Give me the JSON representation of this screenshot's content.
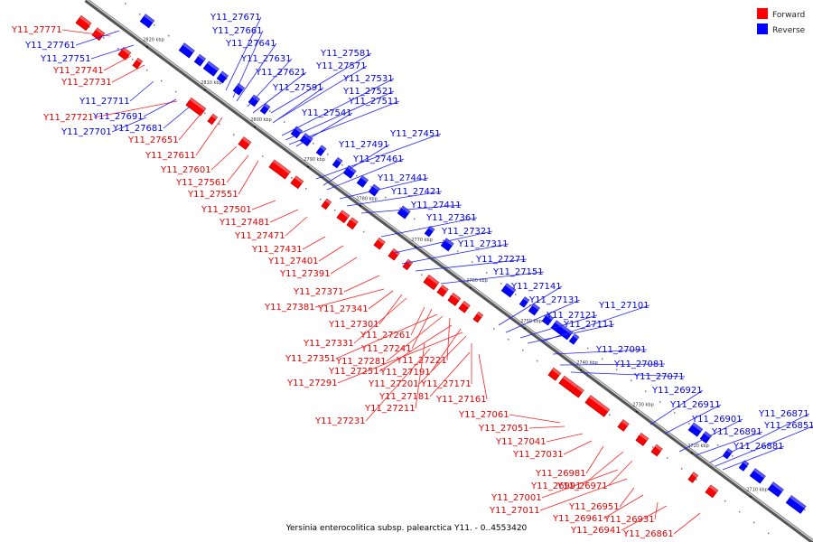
{
  "legend": {
    "forward": {
      "label": "Forward",
      "color": "#ff0000"
    },
    "reverse": {
      "label": "Reverse",
      "color": "#0000ff"
    }
  },
  "caption": "Yersinia enterocolitica subsp. palearctica Y11. - 0..4553420",
  "ticks": [
    "2820 kbp",
    "2810 kbp",
    "2800 kbp",
    "2790 kbp",
    "2780 kbp",
    "2770 kbp",
    "2760 kbp",
    "2750 kbp",
    "2740 kbp",
    "2730 kbp",
    "2720 kbp",
    "2710 kbp"
  ],
  "forward_labels": [
    "Y11_27771",
    "Y11_27741",
    "Y11_27731",
    "Y11_27721",
    "Y11_27651",
    "Y11_27611",
    "Y11_27601",
    "Y11_27561",
    "Y11_27551",
    "Y11_27501",
    "Y11_27481",
    "Y11_27471",
    "Y11_27431",
    "Y11_27401",
    "Y11_27391",
    "Y11_27371",
    "Y11_27381",
    "Y11_27341",
    "Y11_27301",
    "Y11_27331",
    "Y11_27261",
    "Y11_27241",
    "Y11_27351",
    "Y11_27281",
    "Y11_27221",
    "Y11_27251",
    "Y11_27191",
    "Y11_27291",
    "Y11_27201",
    "Y11_27171",
    "Y11_27181",
    "Y11_27161",
    "Y11_27211",
    "Y11_27231",
    "Y11_27061",
    "Y11_27051",
    "Y11_27041",
    "Y11_27031",
    "Y11_26981",
    "Y11_26991",
    "Y11_26971",
    "Y11_27001",
    "Y11_27011",
    "Y11_26951",
    "Y11_26961",
    "Y11_26931",
    "Y11_26941",
    "Y11_26861"
  ],
  "reverse_labels": [
    "Y11_27671",
    "Y11_27661",
    "Y11_27761",
    "Y11_27641",
    "Y11_27751",
    "Y11_27631",
    "Y11_27621",
    "Y11_27581",
    "Y11_27571",
    "Y11_27591",
    "Y11_27531",
    "Y11_27521",
    "Y11_27711",
    "Y11_27511",
    "Y11_27691",
    "Y11_27681",
    "Y11_27541",
    "Y11_27701",
    "Y11_27451",
    "Y11_27491",
    "Y11_27461",
    "Y11_27441",
    "Y11_27421",
    "Y11_27411",
    "Y11_27361",
    "Y11_27321",
    "Y11_27311",
    "Y11_27271",
    "Y11_27151",
    "Y11_27141",
    "Y11_27131",
    "Y11_27101",
    "Y11_27121",
    "Y11_27111",
    "Y11_27091",
    "Y11_27081",
    "Y11_27071",
    "Y11_26921",
    "Y11_26911",
    "Y11_26901",
    "Y11_26891",
    "Y11_26871",
    "Y11_26851",
    "Y11_26881"
  ]
}
